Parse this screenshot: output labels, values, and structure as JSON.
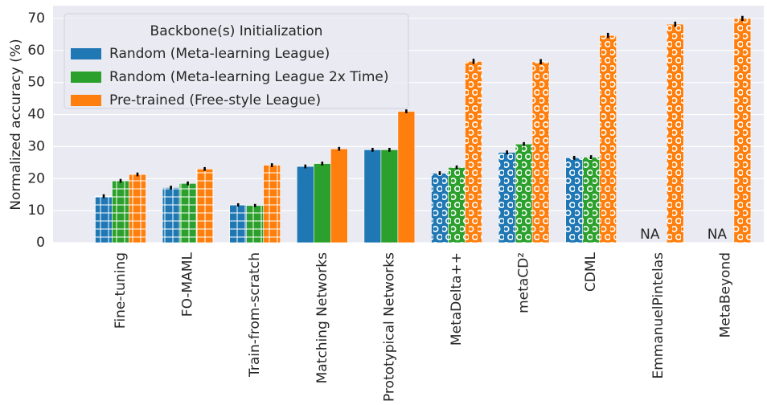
{
  "chart_data": {
    "type": "bar",
    "ylabel": "Normalized accuracy (%)",
    "categories": [
      "Fine-tuning",
      "FO-MAML",
      "Train-from-scratch",
      "Matching Networks",
      "Prototypical Networks",
      "MetaDelta++",
      "metaCD²",
      "CDML",
      "EmmanuelPintelas",
      "MetaBeyond"
    ],
    "hatches": [
      "+",
      "+",
      "+",
      null,
      null,
      "o",
      "o",
      "o",
      "o",
      "o"
    ],
    "series": [
      {
        "name": "Random (Meta-learning League)",
        "color": "#1f77b4",
        "values": [
          14.5,
          17.2,
          11.8,
          23.8,
          29.0,
          21.7,
          28.2,
          26.5,
          null,
          null
        ],
        "errors": [
          0.6,
          0.6,
          0.5,
          0.6,
          0.6,
          0.6,
          0.6,
          0.6,
          null,
          null
        ]
      },
      {
        "name": "Random (Meta-learning League 2x Time)",
        "color": "#2ca02c",
        "values": [
          19.3,
          18.5,
          11.6,
          24.7,
          29.0,
          23.5,
          30.8,
          26.7,
          null,
          null
        ],
        "errors": [
          0.6,
          0.6,
          0.5,
          0.6,
          0.6,
          0.6,
          0.6,
          0.6,
          null,
          null
        ]
      },
      {
        "name": "Pre-trained (Free-style League)",
        "color": "#ff7f0e",
        "values": [
          21.3,
          23.0,
          24.2,
          29.3,
          41.0,
          56.6,
          56.5,
          64.7,
          68.2,
          70.0
        ],
        "errors": [
          0.6,
          0.6,
          0.6,
          0.6,
          0.6,
          0.8,
          0.8,
          0.8,
          0.8,
          0.8
        ]
      }
    ],
    "missing_label": "NA",
    "ylim": [
      0,
      74
    ],
    "yticks": [
      0,
      10,
      20,
      30,
      40,
      50,
      60,
      70
    ],
    "grid": true,
    "legend": {
      "title": "Backbone(s) Initialization",
      "corner": "upper left"
    }
  }
}
